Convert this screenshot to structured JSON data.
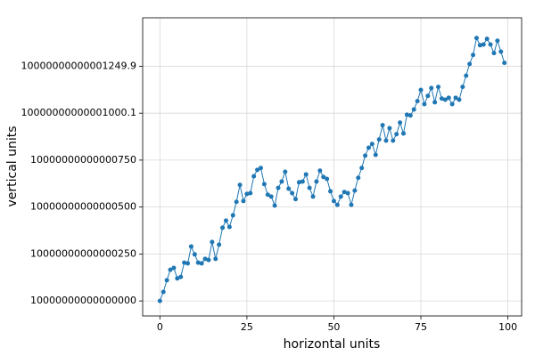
{
  "chart_data": {
    "type": "line",
    "x_label": "horizontal units",
    "y_label": "vertical units",
    "color": "#1f77b4",
    "grid": true,
    "xlim": [
      -4.95,
      103.95
    ],
    "xticks": [
      0,
      25,
      50,
      75,
      100
    ],
    "ylim": [
      9999999999999920,
      10000000000001508
    ],
    "yticks": [
      10000000000000000,
      10000000000000250,
      10000000000000500,
      10000000000000750,
      {
        "value": 10000000000001000,
        "label": "10000000000001000.1"
      },
      {
        "value": 10000000000001250,
        "label": "10000000000001249.9"
      }
    ],
    "x": [
      0,
      1,
      2,
      3,
      4,
      5,
      6,
      7,
      8,
      9,
      10,
      11,
      12,
      13,
      14,
      15,
      16,
      17,
      18,
      19,
      20,
      21,
      22,
      23,
      24,
      25,
      26,
      27,
      28,
      29,
      30,
      31,
      32,
      33,
      34,
      35,
      36,
      37,
      38,
      39,
      40,
      41,
      42,
      43,
      44,
      45,
      46,
      47,
      48,
      49,
      50,
      51,
      52,
      53,
      54,
      55,
      56,
      57,
      58,
      59,
      60,
      61,
      62,
      63,
      64,
      65,
      66,
      67,
      68,
      69,
      70,
      71,
      72,
      73,
      74,
      75,
      76,
      77,
      78,
      79,
      80,
      81,
      82,
      83,
      84,
      85,
      86,
      87,
      88,
      89,
      90,
      91,
      92,
      93,
      94,
      95,
      96,
      97,
      98,
      99
    ],
    "values": [
      10000000000000000,
      10000000000000048,
      10000000000000110,
      10000000000000166,
      10000000000000176,
      10000000000000120,
      10000000000000128,
      10000000000000204,
      10000000000000200,
      10000000000000290,
      10000000000000248,
      10000000000000204,
      10000000000000200,
      10000000000000224,
      10000000000000218,
      10000000000000314,
      10000000000000224,
      10000000000000300,
      10000000000000390,
      10000000000000428,
      10000000000000394,
      10000000000000456,
      10000000000000528,
      10000000000000618,
      10000000000000532,
      10000000000000570,
      10000000000000574,
      10000000000000664,
      10000000000000698,
      10000000000000708,
      10000000000000622,
      10000000000000566,
      10000000000000556,
      10000000000000508,
      10000000000000602,
      10000000000000636,
      10000000000000688,
      10000000000000598,
      10000000000000574,
      10000000000000542,
      10000000000000632,
      10000000000000636,
      10000000000000674,
      10000000000000602,
      10000000000000556,
      10000000000000636,
      10000000000000694,
      10000000000000660,
      10000000000000650,
      10000000000000584,
      10000000000000532,
      10000000000000512,
      10000000000000556,
      10000000000000580,
      10000000000000574,
      10000000000000512,
      10000000000000588,
      10000000000000656,
      10000000000000708,
      10000000000000774,
      10000000000000816,
      10000000000000836,
      10000000000000778,
      10000000000000860,
      10000000000000936,
      10000000000000854,
      10000000000000920,
      10000000000000854,
      10000000000000888,
      10000000000000950,
      10000000000000892,
      10000000000000992,
      10000000000000988,
      10000000000001020,
      10000000000001064,
      10000000000001124,
      10000000000001048,
      10000000000001092,
      10000000000001134,
      10000000000001058,
      10000000000001140,
      10000000000001078,
      10000000000001072,
      10000000000001082,
      10000000000001048,
      10000000000001082,
      10000000000001072,
      10000000000001140,
      10000000000001200,
      10000000000001262,
      10000000000001310,
      10000000000001400,
      10000000000001362,
      10000000000001366,
      10000000000001396,
      10000000000001366,
      10000000000001320,
      10000000000001386,
      10000000000001328,
      10000000000001268
    ]
  }
}
